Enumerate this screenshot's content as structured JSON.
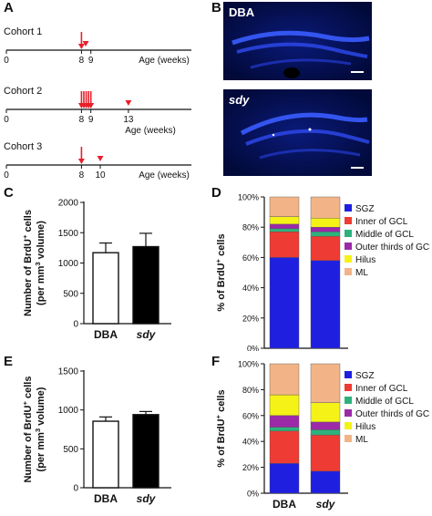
{
  "panels": {
    "A": "A",
    "B": "B",
    "C": "C",
    "D": "D",
    "E": "E",
    "F": "F"
  },
  "timeline": {
    "cohorts": [
      {
        "name": "Cohort 1",
        "ticks": [
          "0",
          "8",
          "9"
        ],
        "tick_weeks": [
          0,
          8,
          9
        ],
        "axis_label": "Age (weeks)",
        "arrows": [
          8
        ],
        "triangles": [
          8.45
        ]
      },
      {
        "name": "Cohort 2",
        "ticks": [
          "0",
          "8",
          "9",
          "13"
        ],
        "tick_weeks": [
          0,
          8,
          9,
          13
        ],
        "axis_label": "Age (weeks)",
        "arrows": [
          8,
          8.25,
          8.5,
          8.75,
          9
        ],
        "triangles": [
          13
        ]
      },
      {
        "name": "Cohort 3",
        "ticks": [
          "0",
          "8",
          "10"
        ],
        "tick_weeks": [
          0,
          8,
          10
        ],
        "axis_label": "Age (weeks)",
        "arrows": [
          8
        ],
        "triangles": [
          10
        ]
      }
    ],
    "marker_color": "#e8202a"
  },
  "micrographs": [
    {
      "label": "DBA",
      "italic": false
    },
    {
      "label": "sdy",
      "italic": true
    }
  ],
  "chart_data": [
    {
      "panel": "C",
      "type": "bar",
      "categories": [
        "DBA",
        "sdy"
      ],
      "category_italic": [
        false,
        true
      ],
      "values": [
        1170,
        1270
      ],
      "errors": [
        160,
        220
      ],
      "fills": [
        "#ffffff",
        "#000000"
      ],
      "ylim": [
        0,
        2000
      ],
      "yticks": [
        0,
        500,
        1000,
        1500,
        2000
      ],
      "ylabel_line1": "Number of BrdU",
      "ylabel_sup1": "+",
      "ylabel_line1_end": " cells",
      "ylabel_line2": "(per mm",
      "ylabel_sup2": "3",
      "ylabel_line2_end": " volume)"
    },
    {
      "panel": "D",
      "type": "stacked-bar",
      "categories": [
        "DBA",
        "sdy"
      ],
      "category_italic": [
        false,
        true
      ],
      "series": [
        {
          "name": "SGZ",
          "color": "#1f1fe0",
          "values": [
            60,
            58
          ]
        },
        {
          "name": "Inner of GCL",
          "color": "#ee3b33",
          "values": [
            17,
            16
          ]
        },
        {
          "name": "Middle of GCL",
          "color": "#2eb27d",
          "values": [
            2,
            3
          ]
        },
        {
          "name": "Outer thirds of GCL",
          "color": "#9c2aa8",
          "values": [
            3,
            3
          ]
        },
        {
          "name": "Hilus",
          "color": "#f5f218",
          "values": [
            5,
            6
          ]
        },
        {
          "name": "ML",
          "color": "#f2b487",
          "values": [
            13,
            14
          ]
        }
      ],
      "ylim": [
        0,
        100
      ],
      "yticks": [
        "0%",
        "20%",
        "40%",
        "60%",
        "80%",
        "100%"
      ],
      "ylabel": "% of BrdU",
      "ylabel_sup": "+",
      "ylabel_end": " cells"
    },
    {
      "panel": "E",
      "type": "bar",
      "categories": [
        "DBA",
        "sdy"
      ],
      "category_italic": [
        false,
        true
      ],
      "values": [
        855,
        940
      ],
      "errors": [
        55,
        40
      ],
      "fills": [
        "#ffffff",
        "#000000"
      ],
      "ylim": [
        0,
        1500
      ],
      "yticks": [
        0,
        500,
        1000,
        1500
      ],
      "ylabel_line1": "Number of BrdU",
      "ylabel_sup1": "+",
      "ylabel_line1_end": " cells",
      "ylabel_line2": "(per mm",
      "ylabel_sup2": "3",
      "ylabel_line2_end": " volume)"
    },
    {
      "panel": "F",
      "type": "stacked-bar",
      "categories": [
        "DBA",
        "sdy"
      ],
      "category_italic": [
        false,
        true
      ],
      "series": [
        {
          "name": "SGZ",
          "color": "#1f1fe0",
          "values": [
            23,
            17
          ]
        },
        {
          "name": "Inner of GCL",
          "color": "#ee3b33",
          "values": [
            25,
            28
          ]
        },
        {
          "name": "Middle of GCL",
          "color": "#2eb27d",
          "values": [
            3,
            4
          ]
        },
        {
          "name": "Outer thirds of GCL",
          "color": "#9c2aa8",
          "values": [
            9,
            6
          ]
        },
        {
          "name": "Hilus",
          "color": "#f5f218",
          "values": [
            16,
            15
          ]
        },
        {
          "name": "ML",
          "color": "#f2b487",
          "values": [
            24,
            30
          ]
        }
      ],
      "ylim": [
        0,
        100
      ],
      "yticks": [
        "0%",
        "20%",
        "40%",
        "60%",
        "80%",
        "100%"
      ],
      "ylabel": "% of BrdU",
      "ylabel_sup": "+",
      "ylabel_end": " cells"
    }
  ]
}
